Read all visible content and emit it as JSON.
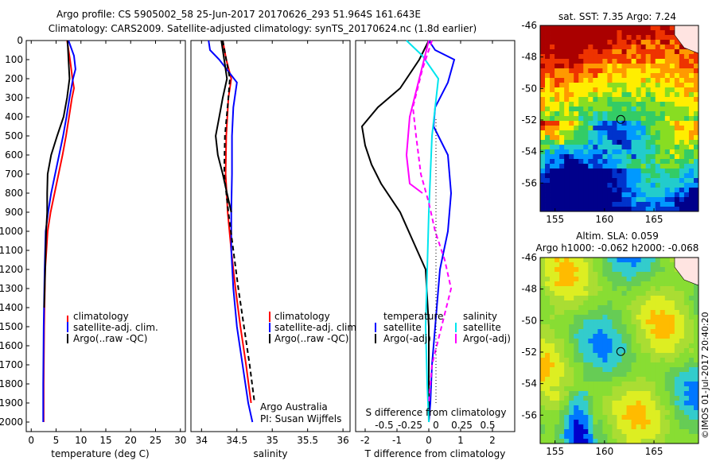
{
  "title_line1": "Argo profile: CS 5905002_58 25-Jun-2017 20170626_293 51.964S 161.643E",
  "title_line2": "Climatology: CARS2009. Satellite-adjusted climatology: synTS_20170624.nc (1.8d earlier)",
  "credit_line1": "Argo Australia",
  "credit_line2": "PI: Susan Wijffels",
  "watermark": "©IMOS 01-Jul-2017 20:40:20",
  "colors": {
    "climatology": "#ff0000",
    "satellite": "#0000ff",
    "argo": "#000000",
    "sat_salinity": "#00e5ee",
    "argo_salinity": "#ff00ff"
  },
  "chart_data": [
    {
      "type": "line",
      "name": "temperature-profile",
      "xlabel": "temperature (deg C)",
      "ylabel": "",
      "xlim": [
        -1,
        31
      ],
      "ylim": [
        2050,
        0
      ],
      "xticks": [
        "0",
        "5",
        "10",
        "15",
        "20",
        "25",
        "30"
      ],
      "yticks": [
        "0",
        "100",
        "200",
        "300",
        "400",
        "500",
        "600",
        "700",
        "800",
        "900",
        "1000",
        "1100",
        "1200",
        "1300",
        "1400",
        "1500",
        "1600",
        "1700",
        "1800",
        "1900",
        "2000"
      ],
      "legend": [
        "climatology",
        "satellite-adj. clim.",
        "Argo(..raw -QC)"
      ],
      "series": [
        {
          "name": "climatology",
          "style": "solid",
          "color": "#ff0000",
          "x": [
            7.2,
            7.8,
            8.3,
            8.6,
            8.2,
            7.6,
            7.0,
            6.3,
            5.5,
            4.7,
            3.9,
            3.3,
            2.8,
            2.6,
            2.5,
            2.5
          ],
          "y": [
            0,
            100,
            200,
            250,
            300,
            400,
            500,
            600,
            700,
            800,
            900,
            1000,
            1200,
            1500,
            1800,
            2000
          ]
        },
        {
          "name": "satellite-adj. clim.",
          "style": "solid",
          "color": "#0000ff",
          "x": [
            7.5,
            8.6,
            8.9,
            8.4,
            7.7,
            7.1,
            6.4,
            5.6,
            4.8,
            4.0,
            3.4,
            2.9,
            2.7,
            2.5,
            2.4,
            2.4
          ],
          "y": [
            0,
            80,
            150,
            200,
            300,
            400,
            500,
            600,
            700,
            800,
            900,
            1000,
            1200,
            1500,
            1800,
            2000
          ]
        },
        {
          "name": "Argo(..raw -QC)",
          "style": "solid",
          "color": "#000000",
          "x": [
            7.3,
            7.5,
            7.7,
            7.2,
            6.5,
            5.2,
            4.0,
            3.3,
            3.2,
            3.2,
            3.0,
            2.8,
            2.6
          ],
          "y": [
            0,
            100,
            200,
            300,
            400,
            500,
            600,
            700,
            800,
            900,
            1000,
            1200,
            1400
          ]
        }
      ]
    },
    {
      "type": "line",
      "name": "salinity-profile",
      "xlabel": "salinity",
      "xlim": [
        33.85,
        36.1
      ],
      "ylim": [
        2050,
        0
      ],
      "xticks": [
        "34",
        "34.5",
        "35",
        "35.5",
        "36"
      ],
      "legend": [
        "climatology",
        "satellite-adj. clim.",
        "Argo(..raw -QC)"
      ],
      "series": [
        {
          "name": "climatology",
          "style": "solid",
          "color": "#ff0000",
          "x": [
            34.3,
            34.35,
            34.42,
            34.38,
            34.35,
            34.34,
            34.37,
            34.42,
            34.48,
            34.55,
            34.63,
            34.7
          ],
          "y": [
            0,
            100,
            200,
            300,
            500,
            700,
            900,
            1100,
            1300,
            1500,
            1700,
            1900
          ]
        },
        {
          "name": "satellite-adj. clim.",
          "style": "solid",
          "color": "#0000ff",
          "x": [
            34.1,
            34.12,
            34.25,
            34.5,
            34.45,
            34.43,
            34.43,
            34.42,
            34.42,
            34.45,
            34.5,
            34.58,
            34.66,
            34.72
          ],
          "y": [
            0,
            50,
            100,
            220,
            350,
            500,
            700,
            900,
            1100,
            1300,
            1500,
            1700,
            1900,
            2000
          ]
        },
        {
          "name": "Argo(..raw -QC) dashed",
          "style": "dashed",
          "color": "#000000",
          "x": [
            34.3,
            34.35,
            34.4,
            34.38,
            34.33,
            34.32,
            34.38,
            34.45,
            34.52,
            34.6,
            34.68,
            34.75
          ],
          "y": [
            0,
            100,
            200,
            300,
            500,
            700,
            900,
            1100,
            1300,
            1500,
            1700,
            1900
          ]
        },
        {
          "name": "Argo(..raw -QC)",
          "style": "solid",
          "color": "#000000",
          "x": [
            34.28,
            34.32,
            34.36,
            34.3,
            34.25,
            34.2,
            34.23,
            34.3,
            34.36,
            34.42
          ],
          "y": [
            0,
            100,
            200,
            300,
            400,
            500,
            600,
            700,
            800,
            900
          ]
        }
      ]
    },
    {
      "type": "line",
      "name": "difference-profile",
      "xlabel": "T difference from climatology",
      "xlabel_top": "S difference from climatology",
      "xlim": [
        -2.3,
        2.7
      ],
      "ylim": [
        2050,
        0
      ],
      "xticks": [
        "-2",
        "-1",
        "0",
        "1",
        "2"
      ],
      "xticks_top": [
        "-0.5",
        "-0.25",
        "0",
        "0.25",
        "0.5"
      ],
      "legend_left_title": "temperature",
      "legend_right_title": "salinity",
      "legend": [
        "satellite",
        "Argo(-adj)",
        "satellite",
        "Argo(-adj)"
      ],
      "series": [
        {
          "name": "T satellite",
          "style": "solid",
          "color": "#0000ff",
          "x": [
            0.0,
            0.2,
            0.8,
            0.6,
            0.2,
            0.15,
            0.3,
            0.6,
            0.7,
            0.6,
            0.35,
            0.2,
            0.1,
            0.05,
            0.0
          ],
          "y": [
            0,
            50,
            100,
            220,
            350,
            450,
            500,
            600,
            800,
            1000,
            1200,
            1500,
            1700,
            1900,
            2000
          ]
        },
        {
          "name": "T Argo(-adj)",
          "style": "solid",
          "color": "#000000",
          "x": [
            0.0,
            -0.3,
            -0.9,
            -1.6,
            -2.1,
            -2.0,
            -1.8,
            -1.5,
            -0.9,
            -0.5,
            -0.1,
            0.0,
            0.0
          ],
          "y": [
            0,
            100,
            250,
            350,
            450,
            550,
            650,
            750,
            900,
            1050,
            1200,
            1500,
            2000
          ]
        },
        {
          "name": "S satellite",
          "style": "solid",
          "color": "#00e5ee",
          "x": [
            -0.7,
            -0.2,
            0.3,
            0.2,
            0.1,
            0.05,
            0.0,
            -0.05,
            -0.1,
            -0.05,
            0.0
          ],
          "y": [
            0,
            80,
            200,
            350,
            500,
            700,
            900,
            1200,
            1500,
            1800,
            2000
          ]
        },
        {
          "name": "S Argo(-adj)",
          "style": "dashed",
          "color": "#ff00ff",
          "x": [
            0.1,
            -0.2,
            -0.5,
            -0.4,
            -0.25,
            0.0,
            0.2,
            0.5,
            0.7,
            0.4,
            0.1,
            0.0
          ],
          "y": [
            0,
            150,
            350,
            500,
            700,
            850,
            1000,
            1150,
            1300,
            1500,
            1700,
            1900
          ]
        },
        {
          "name": "S satellite clim diff",
          "style": "solid",
          "color": "#ff00ff",
          "x": [
            0.0,
            -0.3,
            -0.6,
            -0.7,
            -0.6,
            -0.2
          ],
          "y": [
            0,
            200,
            400,
            600,
            750,
            800
          ]
        }
      ]
    },
    {
      "type": "heatmap",
      "name": "sst-map",
      "title": "sat. SST: 7.35  Argo: 7.24",
      "xticks": [
        "155",
        "160",
        "165"
      ],
      "yticks": [
        "-46",
        "-48",
        "-50",
        "-52",
        "-54",
        "-56"
      ],
      "xlim": [
        153.5,
        169.5
      ],
      "ylim": [
        -57.8,
        -46
      ],
      "marker": {
        "lon": 161.643,
        "lat": -51.964
      }
    },
    {
      "type": "heatmap",
      "name": "sla-map",
      "title": "Altim. SLA: 0.059",
      "title2": "Argo h1000: -0.062  h2000: -0.068",
      "xticks": [
        "155",
        "160",
        "165"
      ],
      "yticks": [
        "-46",
        "-48",
        "-50",
        "-52",
        "-54",
        "-56"
      ],
      "xlim": [
        153.5,
        169.5
      ],
      "ylim": [
        -57.8,
        -46
      ],
      "marker": {
        "lon": 161.643,
        "lat": -51.964
      }
    }
  ]
}
